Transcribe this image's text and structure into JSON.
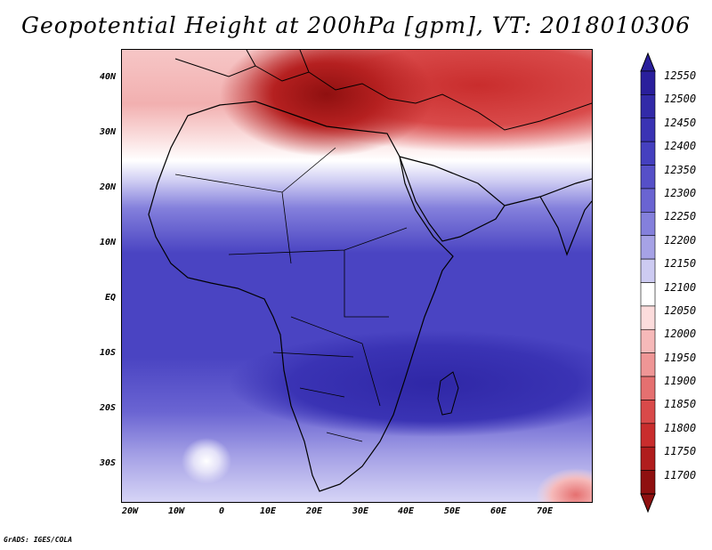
{
  "title": "Geopotential Height at 200hPa [gpm], VT: 2018010306",
  "footer": "GrADS: IGES/COLA",
  "map": {
    "lat_ticks": [
      "40N",
      "30N",
      "20N",
      "10N",
      "EQ",
      "10S",
      "20S",
      "30S"
    ],
    "lon_ticks": [
      "20W",
      "10W",
      "0",
      "10E",
      "20E",
      "30E",
      "40E",
      "50E",
      "60E",
      "70E"
    ]
  },
  "colorbar": {
    "levels": [
      "12550",
      "12500",
      "12450",
      "12400",
      "12350",
      "12300",
      "12250",
      "12200",
      "12150",
      "12100",
      "12050",
      "12000",
      "11950",
      "11900",
      "11850",
      "11800",
      "11750",
      "11700"
    ],
    "colors": [
      "#2a1f9c",
      "#322aa8",
      "#3a33b4",
      "#4540bf",
      "#5650c8",
      "#6a64d2",
      "#8480dc",
      "#a6a2e6",
      "#cdcbf2",
      "#ffffff",
      "#fcdcdc",
      "#f6b9b9",
      "#ef9696",
      "#e57070",
      "#d94a4a",
      "#c92d2d",
      "#b01d1d",
      "#8f1010"
    ]
  }
}
